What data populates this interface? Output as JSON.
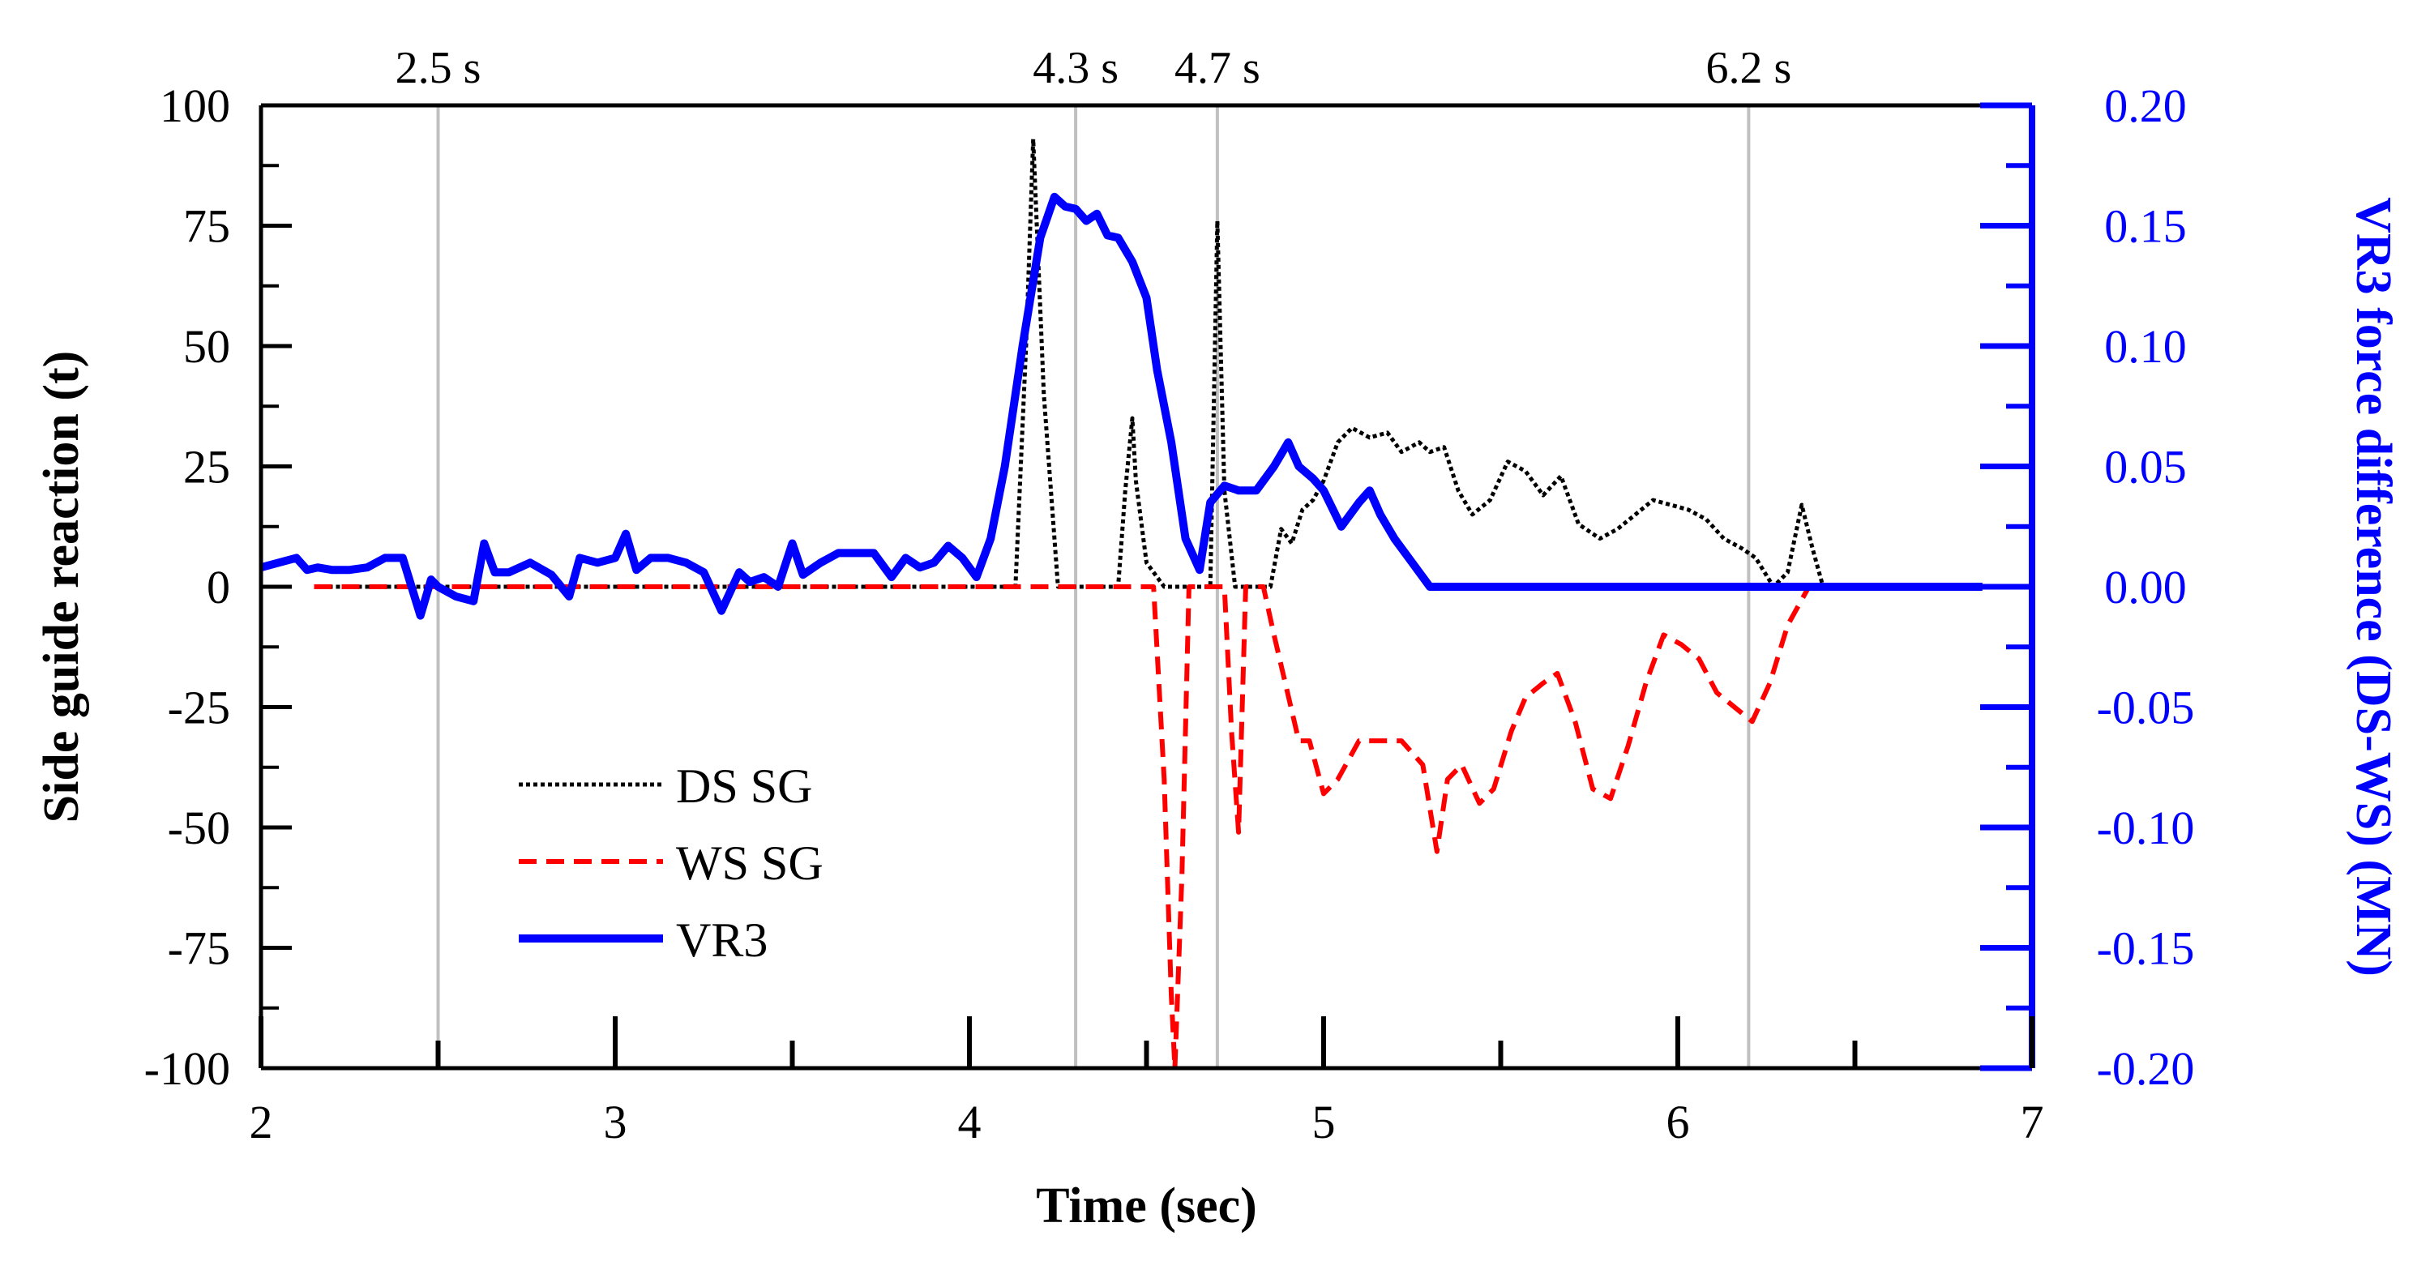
{
  "chart_data": {
    "type": "line",
    "title": "",
    "xlabel": "Time (sec)",
    "ylabel": "Side guide reaction (t)",
    "y2label": "VR3 force difference (DS-WS) (MN)",
    "xlim": [
      2,
      7
    ],
    "ylim": [
      -100,
      100
    ],
    "y2lim": [
      -0.2,
      0.2
    ],
    "x_ticks": [
      "2",
      "3",
      "4",
      "5",
      "6",
      "7"
    ],
    "y_ticks": [
      "100",
      "75",
      "50",
      "25",
      "0",
      "-25",
      "-50",
      "-75",
      "-100"
    ],
    "y2_ticks": [
      "0.20",
      "0.15",
      "0.10",
      "0.05",
      "0.00",
      "-0.05",
      "-0.10",
      "-0.15",
      "-0.20"
    ],
    "markers": [
      {
        "x": 2.5,
        "label": "2.5 s"
      },
      {
        "x": 4.3,
        "label": "4.3 s"
      },
      {
        "x": 4.7,
        "label": "4.7 s"
      },
      {
        "x": 6.2,
        "label": "6.2 s"
      }
    ],
    "legend_position": "lower-left",
    "colors": {
      "ds": "#000000",
      "ws": "#ff0000",
      "vr3": "#0000ff",
      "marker": "#c0c0c0"
    },
    "series": [
      {
        "name": "DS SG",
        "axis": "left",
        "style": "dotted",
        "x": [
          2.15,
          4.13,
          4.16,
          4.18,
          4.21,
          4.25,
          4.42,
          4.44,
          4.46,
          4.47,
          4.5,
          4.55,
          4.68,
          4.7,
          4.72,
          4.75,
          4.85,
          4.88,
          4.91,
          4.94,
          4.97,
          5.0,
          5.04,
          5.08,
          5.13,
          5.18,
          5.22,
          5.27,
          5.3,
          5.34,
          5.38,
          5.42,
          5.47,
          5.52,
          5.57,
          5.62,
          5.67,
          5.72,
          5.78,
          5.83,
          5.88,
          5.93,
          5.98,
          6.03,
          6.08,
          6.13,
          6.18,
          6.22,
          6.27,
          6.31,
          6.35,
          6.38,
          6.41
        ],
        "values": [
          0,
          0,
          50,
          93,
          40,
          0,
          0,
          20,
          35,
          22,
          5,
          0,
          0,
          76,
          20,
          0,
          0,
          12,
          9,
          16,
          18,
          22,
          30,
          33,
          31,
          32,
          28,
          30,
          28,
          29,
          20,
          15,
          18,
          26,
          24,
          19,
          23,
          13,
          10,
          12,
          15,
          18,
          17,
          16,
          14,
          10,
          8,
          6,
          0,
          3,
          17,
          8,
          0
        ]
      },
      {
        "name": "WS SG",
        "axis": "left",
        "style": "dashed",
        "x": [
          2.15,
          4.52,
          4.55,
          4.57,
          4.58,
          4.6,
          4.62,
          4.72,
          4.74,
          4.76,
          4.78,
          4.83,
          4.86,
          4.93,
          4.96,
          5.0,
          5.04,
          5.1,
          5.15,
          5.22,
          5.28,
          5.32,
          5.35,
          5.39,
          5.44,
          5.48,
          5.53,
          5.57,
          5.62,
          5.66,
          5.71,
          5.76,
          5.81,
          5.86,
          5.91,
          5.96,
          6.01,
          6.06,
          6.11,
          6.16,
          6.21,
          6.26,
          6.31,
          6.37,
          6.41
        ],
        "values": [
          0,
          0,
          -40,
          -85,
          -100,
          -60,
          0,
          0,
          -30,
          -51,
          0,
          0,
          -10,
          -32,
          -32,
          -43,
          -40,
          -32,
          -32,
          -32,
          -37,
          -55,
          -40,
          -37,
          -45,
          -42,
          -30,
          -23,
          -20,
          -18,
          -28,
          -42,
          -44,
          -33,
          -20,
          -10,
          -12,
          -15,
          -22,
          -25,
          -28,
          -20,
          -8,
          0,
          0
        ]
      },
      {
        "name": "VR3",
        "axis": "right",
        "style": "solid",
        "x": [
          2.0,
          2.05,
          2.1,
          2.13,
          2.16,
          2.2,
          2.25,
          2.3,
          2.35,
          2.4,
          2.45,
          2.48,
          2.5,
          2.55,
          2.6,
          2.63,
          2.66,
          2.7,
          2.76,
          2.82,
          2.87,
          2.9,
          2.95,
          3.0,
          3.03,
          3.06,
          3.1,
          3.15,
          3.2,
          3.25,
          3.3,
          3.35,
          3.38,
          3.42,
          3.46,
          3.5,
          3.53,
          3.58,
          3.63,
          3.68,
          3.73,
          3.78,
          3.82,
          3.86,
          3.9,
          3.94,
          3.98,
          4.02,
          4.06,
          4.1,
          4.15,
          4.2,
          4.24,
          4.27,
          4.3,
          4.33,
          4.36,
          4.39,
          4.42,
          4.46,
          4.5,
          4.53,
          4.57,
          4.61,
          4.65,
          4.68,
          4.72,
          4.76,
          4.81,
          4.86,
          4.9,
          4.93,
          4.97,
          5.0,
          5.05,
          5.1,
          5.13,
          5.16,
          5.2,
          5.25,
          5.3,
          5.34,
          5.38,
          6.86
        ],
        "values": [
          0.008,
          0.01,
          0.012,
          0.007,
          0.008,
          0.007,
          0.007,
          0.008,
          0.012,
          0.012,
          -0.012,
          0.003,
          0.0,
          -0.004,
          -0.006,
          0.018,
          0.006,
          0.006,
          0.01,
          0.005,
          -0.004,
          0.012,
          0.01,
          0.012,
          0.022,
          0.007,
          0.012,
          0.012,
          0.01,
          0.006,
          -0.01,
          0.006,
          0.002,
          0.004,
          0.0,
          0.018,
          0.005,
          0.01,
          0.014,
          0.014,
          0.014,
          0.004,
          0.012,
          0.008,
          0.01,
          0.017,
          0.012,
          0.004,
          0.02,
          0.05,
          0.1,
          0.145,
          0.162,
          0.158,
          0.157,
          0.152,
          0.155,
          0.146,
          0.145,
          0.135,
          0.12,
          0.09,
          0.06,
          0.02,
          0.007,
          0.035,
          0.042,
          0.04,
          0.04,
          0.05,
          0.06,
          0.05,
          0.045,
          0.04,
          0.025,
          0.035,
          0.04,
          0.03,
          0.02,
          0.01,
          0.0,
          0.0,
          0.0,
          0.0
        ]
      }
    ]
  }
}
